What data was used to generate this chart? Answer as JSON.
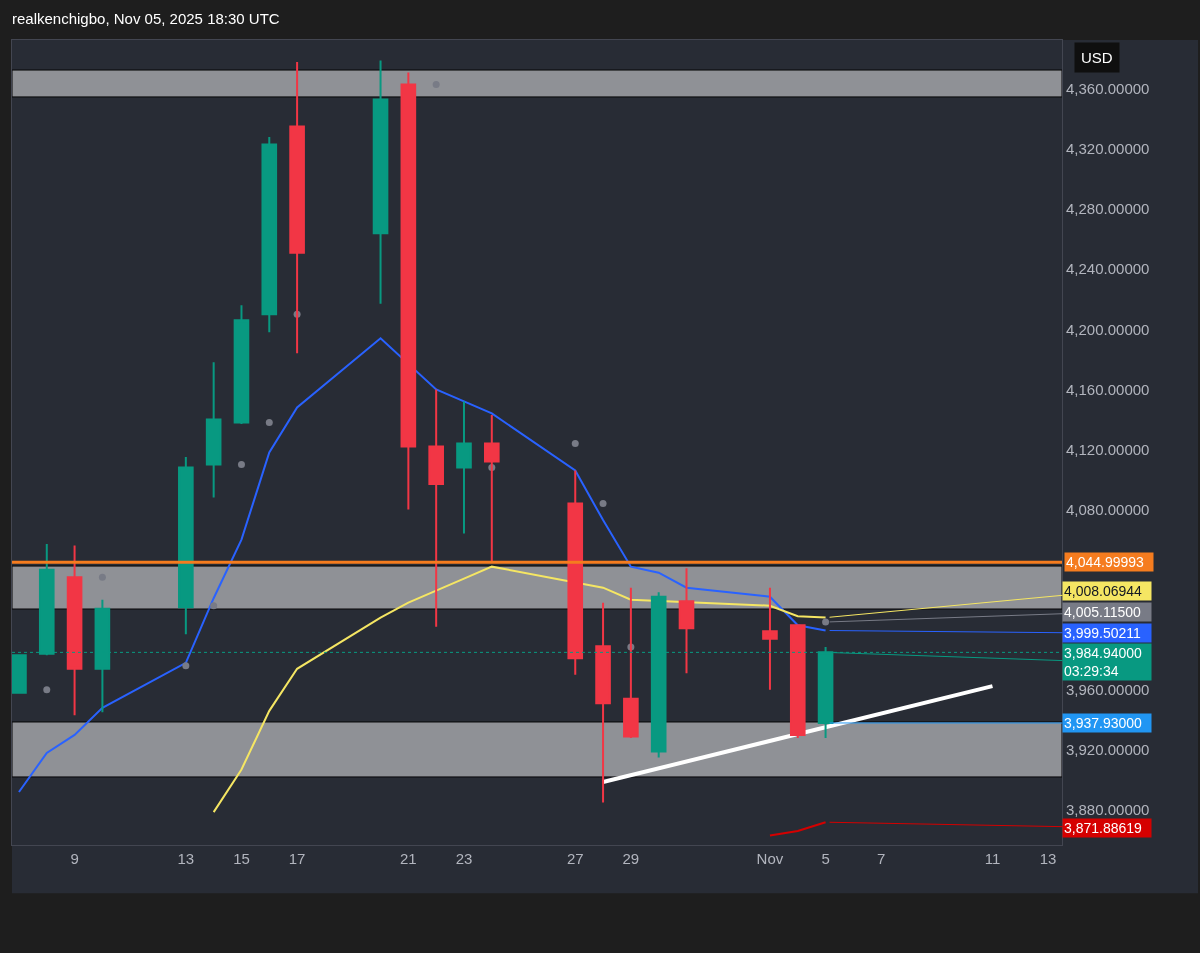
{
  "chart_data": {
    "type": "candlestick",
    "title": "realkenchigbo, Nov 05, 2025 18:30 UTC",
    "ylabel": "USD",
    "x": [
      "2025-10-07",
      "2025-10-08",
      "2025-10-09",
      "2025-10-10",
      "2025-10-13",
      "2025-10-14",
      "2025-10-15",
      "2025-10-16",
      "2025-10-17",
      "2025-10-20",
      "2025-10-21",
      "2025-10-22",
      "2025-10-23",
      "2025-10-24",
      "2025-10-27",
      "2025-10-28",
      "2025-10-29",
      "2025-10-30",
      "2025-10-31",
      "2025-11-03",
      "2025-11-04",
      "2025-11-05"
    ],
    "ohlc": [
      [
        3958,
        3983,
        3958,
        3983
      ],
      [
        3984,
        4057,
        3983,
        4040
      ],
      [
        4035,
        4056,
        3943,
        3974
      ],
      [
        3974,
        4020,
        3945,
        4014
      ],
      [
        4015,
        4115,
        3997,
        4108
      ],
      [
        4110,
        4178,
        4088,
        4140
      ],
      [
        4138,
        4216,
        4137,
        4206
      ],
      [
        4210,
        4328,
        4198,
        4323
      ],
      [
        4335,
        4378,
        4184,
        4251
      ],
      [
        4264,
        4379,
        4217,
        4353
      ],
      [
        4363,
        4371,
        4080,
        4122
      ],
      [
        4122,
        4160,
        4002,
        4097
      ],
      [
        4108,
        4152,
        4064,
        4124
      ],
      [
        4124,
        4143,
        4045,
        4112
      ],
      [
        4084,
        4106,
        3970,
        3981
      ],
      [
        3989,
        4018,
        3885,
        3951
      ],
      [
        3954,
        4028,
        3928,
        3929
      ],
      [
        3919,
        4025,
        3915,
        4022
      ],
      [
        4019,
        4041,
        3971,
        4001
      ],
      [
        3999,
        4028,
        3960,
        3994
      ],
      [
        4003,
        4003,
        3928,
        3930
      ],
      [
        3937.93,
        3988.5,
        3928,
        3984.94
      ]
    ],
    "series": [
      {
        "type": "line",
        "color": "#2962ff",
        "values": [
          3892,
          3918,
          3930,
          3948,
          3978,
          4021,
          4060,
          4118,
          4148,
          4194,
          null,
          4160,
          4152,
          4144,
          4106,
          4073,
          4042,
          4038,
          4028,
          4022,
          4003,
          3999.50211
        ]
      },
      {
        "type": "line",
        "color": "#f5e663",
        "values": [
          null,
          null,
          null,
          null,
          null,
          3878.6,
          3907,
          3946,
          3974,
          4008,
          4018,
          4026,
          4034,
          4042,
          null,
          4028,
          4020,
          null,
          null,
          4016,
          4009,
          4008.06944
        ]
      },
      {
        "type": "line",
        "color": "#d50000",
        "values": [
          null,
          null,
          null,
          null,
          null,
          null,
          null,
          null,
          null,
          null,
          null,
          null,
          null,
          null,
          null,
          null,
          null,
          null,
          null,
          3863,
          3866,
          3871.88619
        ]
      },
      {
        "type": "scatter",
        "color": "#787b86",
        "values": [
          null,
          3960,
          null,
          4035,
          3976,
          4016,
          4110,
          4138,
          4210,
          null,
          null,
          4363,
          null,
          4108,
          4124,
          4084,
          3988.5,
          null,
          null,
          null,
          null,
          4005.115
        ]
      },
      {
        "type": "line",
        "color": "#ffffff",
        "x": [
          "2025-10-28",
          "2025-11-11"
        ],
        "values": [
          3898.6,
          3962.5
        ]
      }
    ],
    "ref_lines": [
      {
        "axis": "y",
        "value": 4044.99993,
        "label": "4,044.99993",
        "color": "#f57c1f"
      },
      {
        "axis": "y",
        "value": 3984.94,
        "color": "#089981",
        "line_style": "dotted"
      }
    ],
    "bands": [
      {
        "axis": "y",
        "from": 4354.7,
        "to": 4372.6,
        "color": "#9b9ca1"
      },
      {
        "axis": "y",
        "from": 4013.8,
        "to": 4042.4,
        "color": "#9b9ca1"
      },
      {
        "axis": "y",
        "from": 3902,
        "to": 3938.6,
        "color": "#9b9ca1"
      }
    ],
    "annotations": [
      {
        "text": "4,008.06944",
        "x": "2025-11-05",
        "y": 4008.06944
      },
      {
        "text": "4,005.11500",
        "x": "2025-11-05",
        "y": 4005.115
      },
      {
        "text": "3,999.50211",
        "x": "2025-11-05",
        "y": 3999.50211
      },
      {
        "text": "3,984.94000\n03:29:34",
        "x": "2025-11-05",
        "y": 3984.94
      },
      {
        "text": "3,937.93000",
        "x": "2025-11-05",
        "y": 3937.93
      },
      {
        "text": "3,871.88619",
        "x": "2025-11-05",
        "y": 3871.88619
      }
    ],
    "xlim": [
      "2025-10-06T18:00",
      "2025-11-13T12:00"
    ],
    "xticks": [
      {
        "value": "2025-10-09",
        "label": "9"
      },
      {
        "value": "2025-10-13",
        "label": "13"
      },
      {
        "value": "2025-10-15",
        "label": "15"
      },
      {
        "value": "2025-10-17",
        "label": "17"
      },
      {
        "value": "2025-10-21",
        "label": "21"
      },
      {
        "value": "2025-10-23",
        "label": "23"
      },
      {
        "value": "2025-10-27",
        "label": "27"
      },
      {
        "value": "2025-10-29",
        "label": "29"
      },
      {
        "value": "2025-11-03",
        "label": "Nov"
      },
      {
        "value": "2025-11-05",
        "label": "5"
      },
      {
        "value": "2025-11-07",
        "label": "7"
      },
      {
        "value": "2025-11-11",
        "label": "11"
      },
      {
        "value": "2025-11-13",
        "label": "13"
      }
    ],
    "ylim": [
      3856.7,
      4392.6
    ],
    "yticks": [
      {
        "value": 3880,
        "label": "3,880.00000"
      },
      {
        "value": 3920,
        "label": "3,920.00000"
      },
      {
        "value": 3960,
        "label": "3,960.00000"
      },
      {
        "value": 4080,
        "label": "4,080.00000"
      },
      {
        "value": 4120,
        "label": "4,120.00000"
      },
      {
        "value": 4160,
        "label": "4,160.00000"
      },
      {
        "value": 4200,
        "label": "4,200.00000"
      },
      {
        "value": 4240,
        "label": "4,240.00000"
      },
      {
        "value": 4280,
        "label": "4,280.00000"
      },
      {
        "value": 4320,
        "label": "4,320.00000"
      },
      {
        "value": 4360,
        "label": "4,360.00000"
      }
    ]
  }
}
